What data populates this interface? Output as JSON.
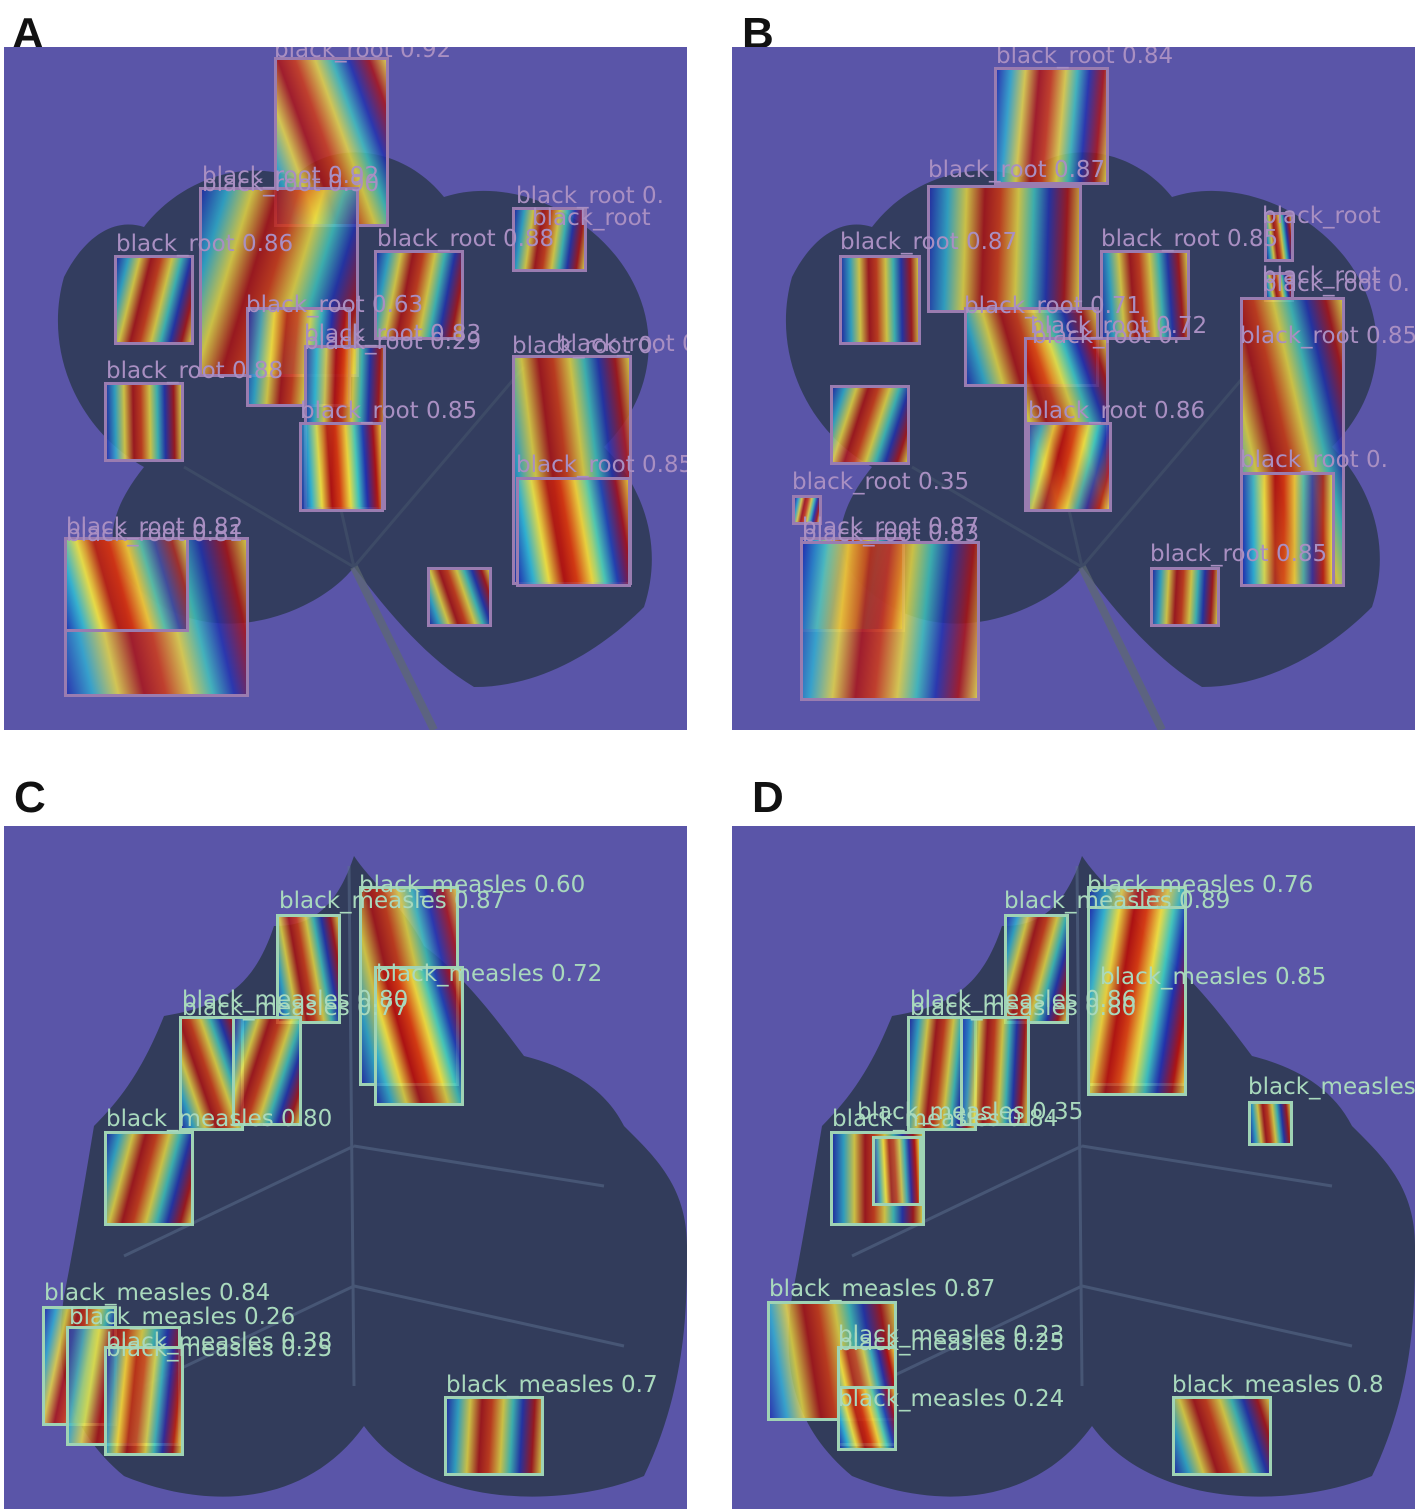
{
  "colors": {
    "background_purple": "#5a55a8",
    "leaf_dark": "#2d3a52",
    "root_box": "#9a7cb0",
    "root_label": "#a98fc2",
    "measles_box": "#9fd3b4",
    "measles_label": "#a9d9bd",
    "heat_red": "#b01010",
    "heat_yellow": "#f0e040",
    "heat_blue": "#2030b0"
  },
  "panels": [
    {
      "letter": "A",
      "kind": "root",
      "labels": [
        "black_root 0.92",
        "black_root 0.92",
        "black_root 0.90",
        "black_root 0.86",
        "black_root 0.88",
        "black_root 0.",
        "black_root",
        "black_root 0.63",
        "black_root 0.83",
        "black_root 0.29",
        "black_root 0.",
        "black_root 0.88",
        "black_root 0.85",
        "black_root 0.",
        "black_root 0.85",
        "black_root 0.82",
        "black_root 0.81"
      ]
    },
    {
      "letter": "B",
      "kind": "root",
      "labels": [
        "black_root 0.84",
        "black_root 0.87",
        "black_root 0.87",
        "black_root 0.85",
        "black_root",
        "black_root",
        "black_root 0.",
        "black_root 0.71",
        "black_root 0.72",
        "black_root 0.",
        "black_root 0.85",
        "black_root 0.86",
        "black_root 0.",
        "black_root 0.35",
        "black_root 0.87",
        "black_root 0.83",
        "black_root 0.85"
      ]
    },
    {
      "letter": "C",
      "kind": "measles",
      "labels": [
        "black_measles 0.60",
        "black_measles 0.87",
        "black_measles 0.72",
        "black_measles 0.80",
        "black_measles 0.77",
        "black_measles 0.80",
        "black_measles 0.84",
        "black_measles 0.26",
        "black_measles 0.38",
        "black_measles 0.25",
        "black_measles 0.7"
      ]
    },
    {
      "letter": "D",
      "kind": "measles",
      "labels": [
        "black_measles 0.76",
        "black_measles 0.89",
        "black_measles 0.85",
        "black_measles 0.86",
        "black_measles 0.80",
        "black_measles 0.35",
        "black_measles 0.84",
        "black_measles",
        "black_measles 0.87",
        "black_measles 0.23",
        "black_measles 0.25",
        "black_measles 0.24",
        "black_measles 0.8"
      ]
    }
  ]
}
